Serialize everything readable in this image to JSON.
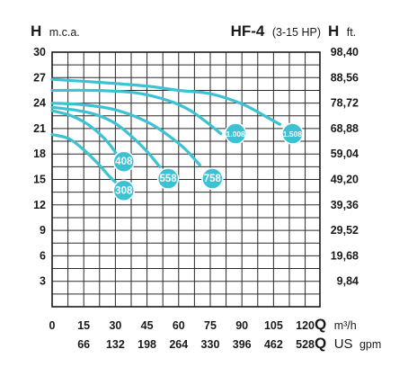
{
  "chart_data": {
    "type": "line",
    "title": "HF-4",
    "subtitle": "(3-15 HP)",
    "y_left": {
      "symbol": "H",
      "unit": "m.c.a.",
      "ticks": [
        "3",
        "6",
        "9",
        "12",
        "15",
        "18",
        "21",
        "24",
        "27",
        "30"
      ],
      "range": [
        0,
        30
      ]
    },
    "y_right": {
      "symbol": "H",
      "unit": "ft.",
      "ticks": [
        "9,84",
        "19,68",
        "29,52",
        "39,36",
        "49,20",
        "59,04",
        "68,88",
        "78,72",
        "88,56",
        "98,40"
      ]
    },
    "x_primary": {
      "symbol": "Q",
      "unit": "m³/h",
      "ticks": [
        "0",
        "15",
        "30",
        "45",
        "60",
        "75",
        "90",
        "105",
        "120"
      ],
      "range": [
        0,
        127
      ]
    },
    "x_secondary": {
      "symbol": "Q",
      "unit_a": "US",
      "unit_b": "gpm",
      "ticks": [
        "66",
        "132",
        "198",
        "264",
        "330",
        "396",
        "462",
        "528"
      ]
    },
    "grid": true,
    "series": [
      {
        "name": "308",
        "x": [
          0,
          8,
          15,
          22,
          27,
          30
        ],
        "y": [
          20.3,
          19.8,
          18.5,
          16.8,
          15.4,
          14.7
        ]
      },
      {
        "name": "408",
        "x": [
          0,
          8,
          15,
          22,
          28,
          32,
          35
        ],
        "y": [
          23.1,
          22.6,
          21.8,
          20.5,
          18.9,
          17.4,
          16.1
        ]
      },
      {
        "name": "558",
        "x": [
          0,
          10,
          20,
          30,
          38,
          45,
          51
        ],
        "y": [
          23.5,
          23.2,
          22.7,
          21.6,
          20.0,
          18.3,
          16.5
        ]
      },
      {
        "name": "758",
        "x": [
          0,
          15,
          30,
          45,
          55,
          63,
          70
        ],
        "y": [
          24.0,
          23.8,
          23.2,
          21.8,
          20.2,
          18.6,
          16.7
        ]
      },
      {
        "name": "1.008",
        "x": [
          0,
          20,
          40,
          55,
          65,
          73,
          80
        ],
        "y": [
          25.5,
          25.5,
          25.2,
          24.3,
          23.2,
          21.8,
          20.4
        ]
      },
      {
        "name": "1.508",
        "x": [
          0,
          25,
          45,
          60,
          75,
          90,
          100,
          108
        ],
        "y": [
          26.8,
          26.4,
          26.0,
          25.5,
          25.1,
          23.9,
          22.6,
          21.5
        ]
      }
    ],
    "labels": [
      {
        "text": "308",
        "x": 34,
        "y": 13.7
      },
      {
        "text": "408",
        "x": 34,
        "y": 17.1
      },
      {
        "text": "558",
        "x": 55,
        "y": 15.1
      },
      {
        "text": "758",
        "x": 76,
        "y": 15.1
      },
      {
        "text": "1.008",
        "x": 87,
        "y": 20.4
      },
      {
        "text": "1.508",
        "x": 114,
        "y": 20.4
      }
    ],
    "colors": {
      "curve": "#3cc2d3",
      "grid": "#2a2a2a",
      "text": "#1a1a1a"
    }
  }
}
